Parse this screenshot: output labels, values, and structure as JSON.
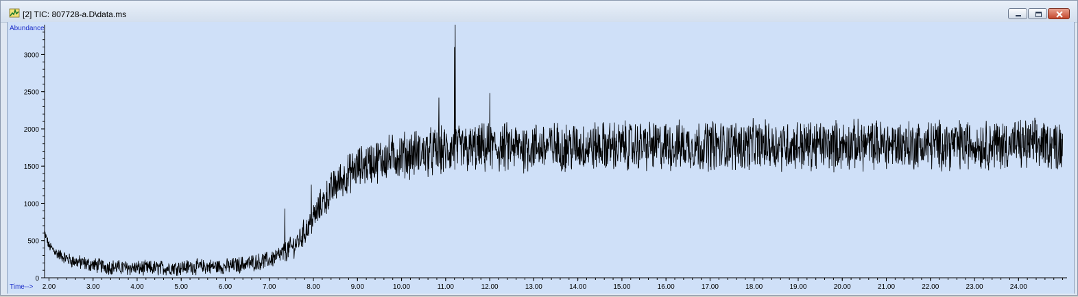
{
  "window": {
    "title": "[2] TIC: 807728-a.D\\data.ms",
    "icon": "chromatogram-app-icon",
    "controls": [
      "minimize-icon",
      "maximize-icon",
      "close-icon"
    ]
  },
  "chart_data": {
    "type": "line",
    "title": "",
    "ylabel": "Abundance",
    "xlabel": "Time-->",
    "xlim": [
      1.9,
      25.1
    ],
    "ylim": [
      0,
      3400
    ],
    "x_ticks": [
      2,
      3,
      4,
      5,
      6,
      7,
      8,
      9,
      10,
      11,
      12,
      13,
      14,
      15,
      16,
      17,
      18,
      19,
      20,
      21,
      22,
      23,
      24
    ],
    "x_tick_labels": [
      "2.00",
      "3.00",
      "4.00",
      "5.00",
      "6.00",
      "7.00",
      "8.00",
      "9.00",
      "10.00",
      "11.00",
      "12.00",
      "13.00",
      "14.00",
      "15.00",
      "16.00",
      "17.00",
      "18.00",
      "19.00",
      "20.00",
      "21.00",
      "22.00",
      "23.00",
      "24.00"
    ],
    "y_ticks": [
      0,
      500,
      1000,
      1500,
      2000,
      2500,
      3000
    ],
    "y_tick_labels": [
      "0",
      "500",
      "1000",
      "1500",
      "2000",
      "2500",
      "3000"
    ],
    "series": [
      {
        "x": [
          1.9,
          2.0,
          2.2,
          2.5,
          3.0,
          3.5,
          4.0,
          4.5,
          5.0,
          5.5,
          6.0,
          6.5,
          7.0,
          7.3,
          7.6,
          7.9,
          8.2,
          8.5,
          8.8,
          9.0,
          9.3,
          9.6,
          10.0,
          10.5,
          11.0,
          11.2,
          11.5,
          12.0,
          13.0,
          14.0,
          15.0,
          16.0,
          17.0,
          18.0,
          19.0,
          20.0,
          21.0,
          22.0,
          23.0,
          24.0,
          25.0
        ],
        "values": [
          600,
          430,
          320,
          230,
          170,
          140,
          130,
          130,
          140,
          150,
          150,
          190,
          240,
          320,
          450,
          700,
          1000,
          1250,
          1400,
          1480,
          1550,
          1600,
          1650,
          1680,
          1700,
          1720,
          1720,
          1740,
          1760,
          1760,
          1770,
          1770,
          1780,
          1780,
          1780,
          1780,
          1790,
          1790,
          1790,
          1790,
          1790
        ],
        "noise_amplitude": [
          60,
          60,
          70,
          80,
          90,
          90,
          90,
          90,
          90,
          90,
          90,
          100,
          100,
          120,
          140,
          170,
          200,
          220,
          230,
          240,
          250,
          260,
          270,
          280,
          290,
          290,
          290,
          290,
          290,
          290,
          290,
          290,
          290,
          290,
          290,
          290,
          290,
          290,
          290,
          290,
          290
        ]
      }
    ],
    "peaks": [
      {
        "x": 11.22,
        "y": 3500
      },
      {
        "x": 11.2,
        "y": 3100
      },
      {
        "x": 7.35,
        "y": 930
      },
      {
        "x": 7.95,
        "y": 1250
      },
      {
        "x": 12.0,
        "y": 2480
      },
      {
        "x": 10.85,
        "y": 2420
      }
    ],
    "background_color": "#cfe0f8",
    "trace_color": "#000000",
    "axis_label_color": "#1d2ec9",
    "grid": false
  }
}
